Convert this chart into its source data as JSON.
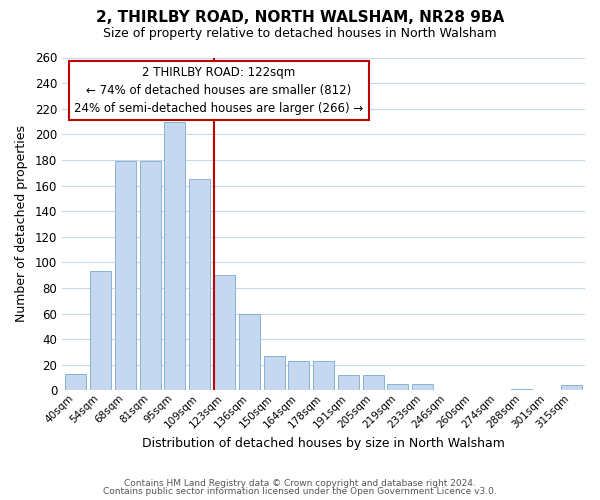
{
  "title": "2, THIRLBY ROAD, NORTH WALSHAM, NR28 9BA",
  "subtitle": "Size of property relative to detached houses in North Walsham",
  "xlabel": "Distribution of detached houses by size in North Walsham",
  "ylabel": "Number of detached properties",
  "footer_line1": "Contains HM Land Registry data © Crown copyright and database right 2024.",
  "footer_line2": "Contains public sector information licensed under the Open Government Licence v3.0.",
  "bar_labels": [
    "40sqm",
    "54sqm",
    "68sqm",
    "81sqm",
    "95sqm",
    "109sqm",
    "123sqm",
    "136sqm",
    "150sqm",
    "164sqm",
    "178sqm",
    "191sqm",
    "205sqm",
    "219sqm",
    "233sqm",
    "246sqm",
    "260sqm",
    "274sqm",
    "288sqm",
    "301sqm",
    "315sqm"
  ],
  "bar_values": [
    13,
    93,
    179,
    179,
    210,
    165,
    90,
    60,
    27,
    23,
    23,
    12,
    12,
    5,
    5,
    0,
    0,
    0,
    1,
    0,
    4
  ],
  "bar_color": "#c5d8f0",
  "bar_edge_color": "#7aaad0",
  "highlight_color": "#c00000",
  "highlight_bar_index": 6,
  "annotation_title": "2 THIRLBY ROAD: 122sqm",
  "annotation_line1": "← 74% of detached houses are smaller (812)",
  "annotation_line2": "24% of semi-detached houses are larger (266) →",
  "ylim": [
    0,
    260
  ],
  "yticks": [
    0,
    20,
    40,
    60,
    80,
    100,
    120,
    140,
    160,
    180,
    200,
    220,
    240,
    260
  ],
  "background_color": "#ffffff",
  "grid_color": "#c8d8ec",
  "annotation_box_color": "#ffffff",
  "annotation_box_edge": "#c00000",
  "red_line_bar_index": 6
}
